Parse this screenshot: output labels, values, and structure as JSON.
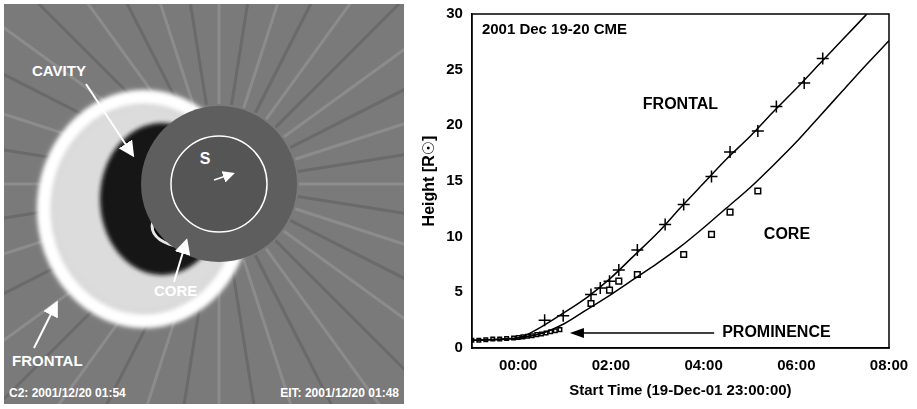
{
  "image_panel": {
    "labels": {
      "cavity": "CAVITY",
      "core": "CORE",
      "frontal": "FRONTAL",
      "sun": "S"
    },
    "footer_left": "C2: 2001/12/20 01:54",
    "footer_right": "EIT: 2001/12/20 01:48"
  },
  "chart_data": {
    "type": "scatter",
    "title": "2001 Dec 19-20 CME",
    "x_label": "Start Time (19-Dec-01 23:00:00)",
    "y_label": "Height [R☉]",
    "xlim": [
      0,
      9
    ],
    "xticks": [
      {
        "value": 1,
        "label": "00:00"
      },
      {
        "value": 3,
        "label": "02:00"
      },
      {
        "value": 5,
        "label": "04:00"
      },
      {
        "value": 7,
        "label": "06:00"
      },
      {
        "value": 9,
        "label": "08:00"
      }
    ],
    "ylim": [
      0,
      30
    ],
    "yticks": [
      0,
      5,
      10,
      15,
      20,
      25,
      30
    ],
    "grid": false,
    "series": [
      {
        "name": "FRONTAL",
        "color": "#000000",
        "marker": "plus",
        "x": [
          1.57,
          1.97,
          2.57,
          2.77,
          2.97,
          3.17,
          3.57,
          4.17,
          4.57,
          5.17,
          5.57,
          6.17,
          6.57,
          7.17,
          7.57
        ],
        "values": [
          2.5,
          2.9,
          4.8,
          5.4,
          6.0,
          7.0,
          8.8,
          11.1,
          12.9,
          15.4,
          17.6,
          19.5,
          21.7,
          23.8,
          26.0
        ],
        "fit_line_style": "solid",
        "fit_x": [
          0,
          1,
          1.5,
          2,
          2.5,
          3,
          3.5,
          4,
          4.5,
          5,
          5.5,
          6,
          6.5,
          7,
          7.5,
          8,
          8.5,
          8.52
        ],
        "fit_values": [
          0.7,
          0.9,
          1.9,
          3.2,
          4.6,
          6.3,
          8.3,
          10.3,
          12.6,
          14.8,
          17.0,
          19.0,
          21.2,
          23.3,
          25.5,
          27.7,
          29.9,
          30.0
        ]
      },
      {
        "name": "CORE",
        "color": "#000000",
        "marker": "square",
        "x": [
          2.57,
          2.97,
          3.17,
          3.57,
          4.57,
          5.17,
          5.57,
          6.17
        ],
        "values": [
          4.0,
          5.2,
          6.0,
          6.6,
          8.4,
          10.2,
          12.2,
          14.1
        ],
        "fit_line_style": "solid",
        "fit_x": [
          0,
          1,
          1.5,
          2,
          2.5,
          3,
          3.5,
          4,
          4.5,
          5,
          5.5,
          6,
          6.5,
          7,
          7.5,
          8,
          8.5,
          9
        ],
        "fit_values": [
          0.7,
          0.9,
          1.3,
          2.2,
          3.5,
          4.8,
          6.2,
          7.6,
          9.1,
          10.8,
          12.6,
          14.4,
          16.4,
          18.5,
          20.8,
          23.1,
          25.4,
          27.6
        ]
      },
      {
        "name": "PROMINENCE",
        "color": "#000000",
        "marker": "square",
        "x": [
          0.0,
          0.15,
          0.3,
          0.45,
          0.6,
          0.75,
          0.9,
          1.0,
          1.1,
          1.2,
          1.3,
          1.4,
          1.5,
          1.6,
          1.7,
          1.8,
          1.9
        ],
        "values": [
          0.7,
          0.7,
          0.75,
          0.8,
          0.8,
          0.85,
          0.9,
          0.95,
          1.0,
          1.05,
          1.1,
          1.2,
          1.25,
          1.35,
          1.45,
          1.55,
          1.65
        ]
      }
    ]
  }
}
